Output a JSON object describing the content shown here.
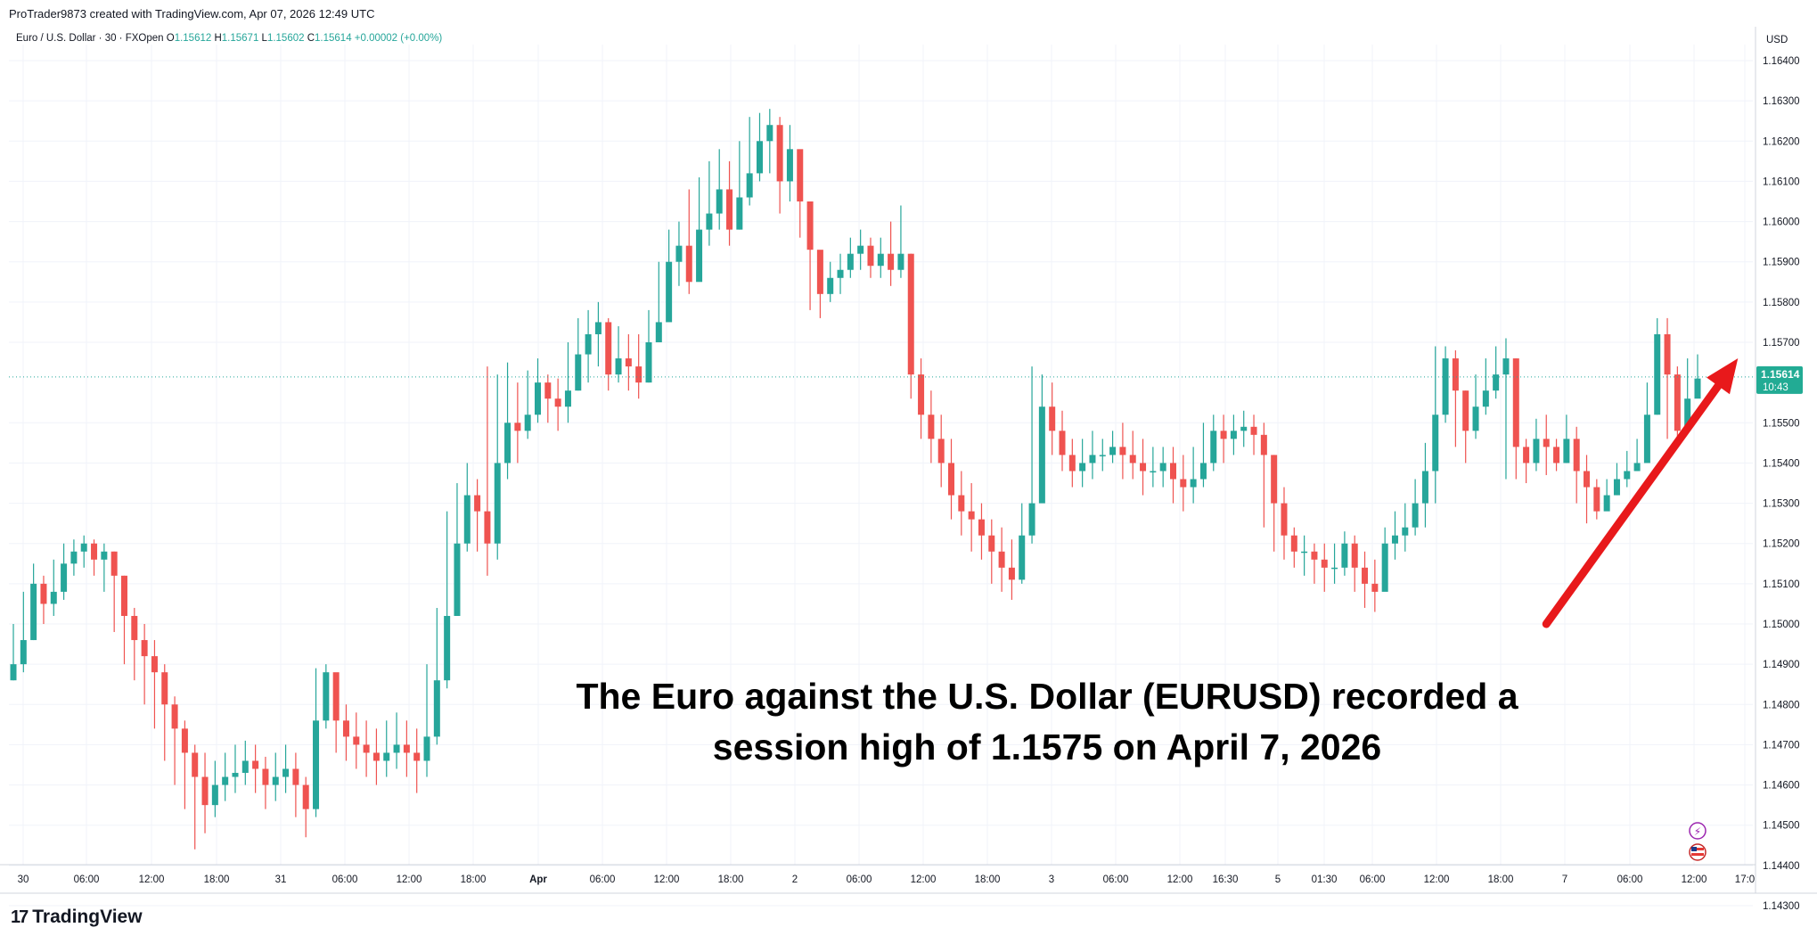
{
  "header": {
    "credit": "ProTrader9873 created with TradingView.com, Apr 07, 2026 12:49 UTC",
    "symbol": "Euro / U.S. Dollar · 30 · FXOpen",
    "ohlc": {
      "o_label": "O",
      "o": "1.15612",
      "h_label": "H",
      "h": "1.15671",
      "l_label": "L",
      "l": "1.15602",
      "c_label": "C",
      "c": "1.15614",
      "change": "+0.00002 (+0.00%)"
    }
  },
  "price_axis": {
    "currency": "USD",
    "last_price": "1.15614",
    "countdown": "10:43"
  },
  "annotation": {
    "line1": "The Euro against the U.S. Dollar (EURUSD) recorded a",
    "line2": "session high of 1.1575 on April 7, 2026"
  },
  "logo": {
    "text": "TradingView",
    "icon": "tradingview-logo-icon"
  },
  "colors": {
    "up": "#26a69a",
    "down": "#ef5350",
    "grid": "#f0f3fa",
    "arrow": "#e8191b",
    "price_badge": "#22ab94"
  },
  "chart_data": {
    "type": "candlestick",
    "title": "",
    "ylim": [
      1.1425,
      1.1645
    ],
    "y_ticks": [
      "1.16400",
      "1.16300",
      "1.16200",
      "1.16100",
      "1.16000",
      "1.15900",
      "1.15800",
      "1.15700",
      "1.15500",
      "1.15400",
      "1.15300",
      "1.15200",
      "1.15100",
      "1.15000",
      "1.14900",
      "1.14800",
      "1.14700",
      "1.14600",
      "1.14500",
      "1.14400",
      "1.14300"
    ],
    "x_ticks": [
      "30",
      "06:00",
      "12:00",
      "18:00",
      "31",
      "06:00",
      "12:00",
      "18:00",
      "Apr",
      "06:00",
      "12:00",
      "18:00",
      "2",
      "06:00",
      "12:00",
      "18:00",
      "3",
      "06:00",
      "12:00",
      "16:30",
      "5",
      "01:30",
      "06:00",
      "12:00",
      "18:00",
      "7",
      "06:00",
      "12:00",
      "17:0"
    ],
    "bold_ticks": [
      "Apr"
    ],
    "series": [
      {
        "close": [
          1.149,
          1.1496,
          1.151,
          1.1505,
          1.1508,
          1.1515,
          1.1518,
          1.152,
          1.1516,
          1.1518,
          1.1512,
          1.1502,
          1.1496,
          1.1492,
          1.1488,
          1.148,
          1.1474,
          1.1468,
          1.1462,
          1.1455,
          1.146,
          1.1462,
          1.1463,
          1.1466,
          1.1464,
          1.146,
          1.1462,
          1.1464,
          1.146,
          1.1454,
          1.1476,
          1.1488,
          1.1476,
          1.1472,
          1.147,
          1.1468,
          1.1466,
          1.1468,
          1.147,
          1.1468,
          1.1466,
          1.1472,
          1.1486,
          1.1502,
          1.152,
          1.1532,
          1.1528,
          1.152,
          1.154,
          1.155,
          1.1548,
          1.1552,
          1.156,
          1.1556,
          1.1554,
          1.1558,
          1.1567,
          1.1572,
          1.1575,
          1.1562,
          1.1566,
          1.1564,
          1.156,
          1.157,
          1.1575,
          1.159,
          1.1594,
          1.1585,
          1.1598,
          1.1602,
          1.1608,
          1.1598,
          1.1606,
          1.1612,
          1.162,
          1.1624,
          1.161,
          1.1618,
          1.1605,
          1.1593,
          1.1582,
          1.1586,
          1.1588,
          1.1592,
          1.1594,
          1.1589,
          1.1592,
          1.1588,
          1.1592,
          1.1562,
          1.1552,
          1.1546,
          1.154,
          1.1532,
          1.1528,
          1.1526,
          1.1522,
          1.1518,
          1.1514,
          1.1511,
          1.1522,
          1.153,
          1.1554,
          1.1548,
          1.1542,
          1.1538,
          1.154,
          1.1542,
          1.1542,
          1.1544,
          1.1542,
          1.154,
          1.1538,
          1.1538,
          1.154,
          1.1536,
          1.1534,
          1.1536,
          1.154,
          1.1548,
          1.1546,
          1.1548,
          1.1549,
          1.1547,
          1.1542,
          1.153,
          1.1522,
          1.1518,
          1.1518,
          1.1516,
          1.1514,
          1.1514,
          1.152,
          1.1514,
          1.151,
          1.1508,
          1.152,
          1.1522,
          1.1524,
          1.153,
          1.1538,
          1.1552,
          1.1566,
          1.1558,
          1.1548,
          1.1554,
          1.1558,
          1.1562,
          1.1566,
          1.1544,
          1.154,
          1.1546,
          1.1544,
          1.154,
          1.1546,
          1.1538,
          1.1534,
          1.1528,
          1.1532,
          1.1536,
          1.1538,
          1.154,
          1.1552,
          1.1572,
          1.1562,
          1.1548,
          1.1556,
          1.1561
        ],
        "high": [
          1.15,
          1.1508,
          1.1515,
          1.1512,
          1.1516,
          1.152,
          1.1521,
          1.1522,
          1.1521,
          1.152,
          1.1518,
          1.1512,
          1.1504,
          1.15,
          1.1496,
          1.149,
          1.1482,
          1.1476,
          1.147,
          1.1468,
          1.1466,
          1.1468,
          1.147,
          1.1471,
          1.147,
          1.1467,
          1.1468,
          1.147,
          1.1468,
          1.1462,
          1.1489,
          1.149,
          1.1482,
          1.148,
          1.1478,
          1.1476,
          1.1474,
          1.1476,
          1.1478,
          1.1476,
          1.1474,
          1.149,
          1.1504,
          1.1528,
          1.1535,
          1.154,
          1.1536,
          1.1564,
          1.1562,
          1.1565,
          1.156,
          1.1563,
          1.1566,
          1.1562,
          1.1561,
          1.157,
          1.1576,
          1.1578,
          1.158,
          1.1576,
          1.1574,
          1.1572,
          1.1572,
          1.1578,
          1.159,
          1.1598,
          1.16,
          1.1608,
          1.1611,
          1.1615,
          1.1618,
          1.1615,
          1.162,
          1.1626,
          1.1627,
          1.1628,
          1.1626,
          1.1624,
          1.1617,
          1.1599,
          1.1588,
          1.159,
          1.1592,
          1.1596,
          1.1598,
          1.1596,
          1.1596,
          1.16,
          1.1604,
          1.1592,
          1.1566,
          1.1558,
          1.1552,
          1.1546,
          1.1538,
          1.1535,
          1.153,
          1.1526,
          1.1524,
          1.1521,
          1.153,
          1.1564,
          1.1562,
          1.156,
          1.1553,
          1.1546,
          1.1546,
          1.1548,
          1.1546,
          1.1548,
          1.155,
          1.1548,
          1.1546,
          1.1544,
          1.1544,
          1.1544,
          1.1542,
          1.1544,
          1.155,
          1.1552,
          1.1552,
          1.1552,
          1.1553,
          1.1552,
          1.155,
          1.1542,
          1.1534,
          1.1524,
          1.1522,
          1.152,
          1.152,
          1.152,
          1.1523,
          1.1522,
          1.1518,
          1.1516,
          1.1524,
          1.1528,
          1.153,
          1.1536,
          1.1545,
          1.1569,
          1.1569,
          1.1568,
          1.1558,
          1.1562,
          1.1566,
          1.1569,
          1.1571,
          1.1566,
          1.1546,
          1.1551,
          1.1552,
          1.1546,
          1.1552,
          1.1549,
          1.1542,
          1.1536,
          1.1536,
          1.154,
          1.1543,
          1.1546,
          1.156,
          1.1576,
          1.1576,
          1.1564,
          1.1566,
          1.1567
        ],
        "low": [
          1.1486,
          1.1488,
          1.1496,
          1.15,
          1.1502,
          1.1506,
          1.1512,
          1.1514,
          1.1512,
          1.1508,
          1.1498,
          1.149,
          1.1486,
          1.148,
          1.1474,
          1.1466,
          1.146,
          1.1454,
          1.1444,
          1.1448,
          1.1452,
          1.1456,
          1.1458,
          1.146,
          1.1458,
          1.1454,
          1.1456,
          1.1458,
          1.1452,
          1.1447,
          1.1452,
          1.1474,
          1.1468,
          1.1466,
          1.1464,
          1.1462,
          1.146,
          1.1462,
          1.1464,
          1.1462,
          1.1458,
          1.1462,
          1.147,
          1.1484,
          1.1502,
          1.1518,
          1.1518,
          1.1512,
          1.1516,
          1.1536,
          1.154,
          1.1546,
          1.155,
          1.155,
          1.1548,
          1.155,
          1.1558,
          1.156,
          1.1564,
          1.1558,
          1.156,
          1.1558,
          1.1556,
          1.156,
          1.157,
          1.158,
          1.1584,
          1.1582,
          1.1586,
          1.1594,
          1.1598,
          1.1594,
          1.1598,
          1.1604,
          1.161,
          1.1612,
          1.1602,
          1.1605,
          1.1596,
          1.1578,
          1.1576,
          1.158,
          1.1582,
          1.1586,
          1.1588,
          1.1586,
          1.1586,
          1.1584,
          1.1586,
          1.1556,
          1.1546,
          1.154,
          1.1534,
          1.1526,
          1.1522,
          1.1518,
          1.1516,
          1.151,
          1.1508,
          1.1506,
          1.151,
          1.152,
          1.1536,
          1.1542,
          1.1538,
          1.1534,
          1.1534,
          1.1536,
          1.1538,
          1.154,
          1.1536,
          1.1536,
          1.1532,
          1.1534,
          1.1534,
          1.153,
          1.1528,
          1.153,
          1.1534,
          1.1538,
          1.154,
          1.1542,
          1.1544,
          1.1542,
          1.1524,
          1.1518,
          1.1516,
          1.1514,
          1.1512,
          1.151,
          1.1508,
          1.151,
          1.1512,
          1.1508,
          1.1504,
          1.1503,
          1.1512,
          1.1516,
          1.1518,
          1.1522,
          1.1524,
          1.153,
          1.155,
          1.1544,
          1.154,
          1.1546,
          1.1552,
          1.1556,
          1.1536,
          1.1536,
          1.1535,
          1.1538,
          1.1537,
          1.1538,
          1.154,
          1.153,
          1.1525,
          1.1526,
          1.153,
          1.1532,
          1.1534,
          1.1538,
          1.1548,
          1.1552,
          1.1546,
          1.1546,
          1.155,
          1.156
        ]
      }
    ],
    "current_price": 1.15614,
    "annotation_arrow": {
      "from": [
        152,
        1.15
      ],
      "to": [
        171,
        1.1566
      ]
    }
  }
}
